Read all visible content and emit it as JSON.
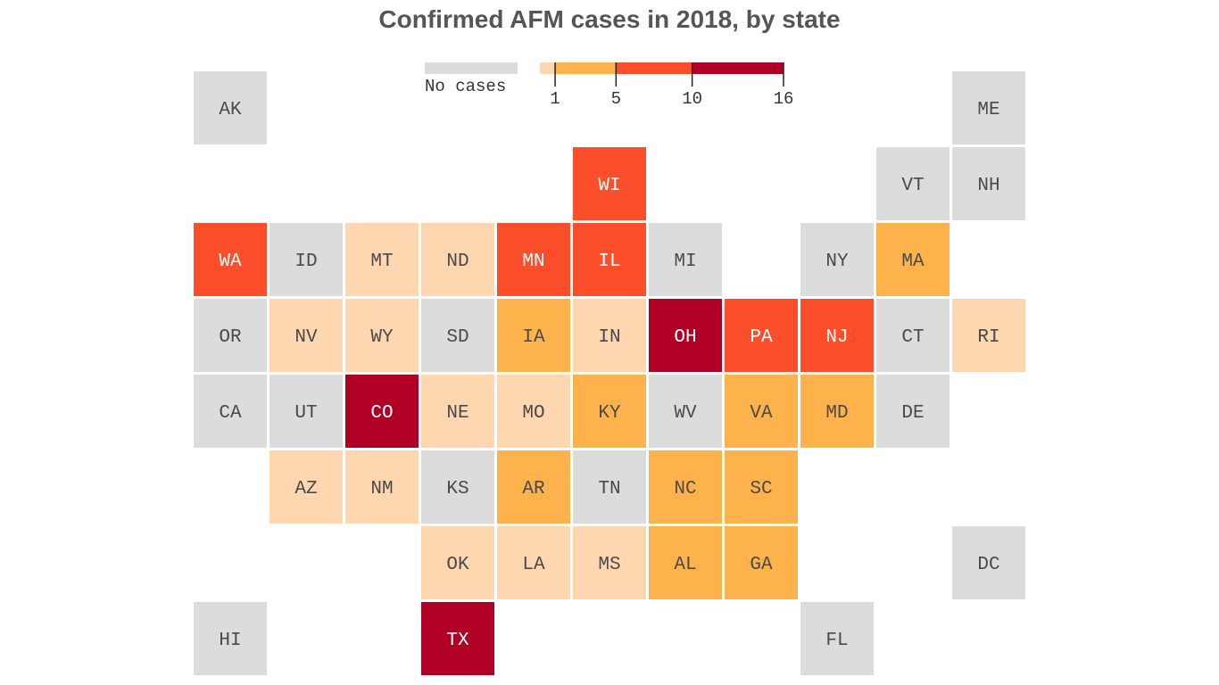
{
  "chart_data": {
    "type": "tile-map",
    "title": "Confirmed AFM cases in 2018, by state",
    "legend": {
      "no_cases_label": "No cases",
      "scale_domain": [
        0,
        16
      ],
      "ticks": [
        "1",
        "5",
        "10",
        "16"
      ],
      "bins": [
        {
          "id": "none",
          "label": "No cases",
          "color": "#dcdcdc"
        },
        {
          "id": "b1",
          "range": [
            0,
            1
          ],
          "color": "#fed6b0"
        },
        {
          "id": "b2",
          "range": [
            1,
            5
          ],
          "color": "#feb24c"
        },
        {
          "id": "b3",
          "range": [
            5,
            10
          ],
          "color": "#fc4e2a"
        },
        {
          "id": "b4",
          "range": [
            10,
            16
          ],
          "color": "#b10026"
        }
      ]
    },
    "states": [
      {
        "abbr": "AK",
        "bin": "none"
      },
      {
        "abbr": "ME",
        "bin": "none"
      },
      {
        "abbr": "WI",
        "bin": "b3"
      },
      {
        "abbr": "VT",
        "bin": "none"
      },
      {
        "abbr": "NH",
        "bin": "none"
      },
      {
        "abbr": "WA",
        "bin": "b3"
      },
      {
        "abbr": "ID",
        "bin": "none"
      },
      {
        "abbr": "MT",
        "bin": "b1"
      },
      {
        "abbr": "ND",
        "bin": "b1"
      },
      {
        "abbr": "MN",
        "bin": "b3"
      },
      {
        "abbr": "IL",
        "bin": "b3"
      },
      {
        "abbr": "MI",
        "bin": "none"
      },
      {
        "abbr": "NY",
        "bin": "none"
      },
      {
        "abbr": "MA",
        "bin": "b2"
      },
      {
        "abbr": "OR",
        "bin": "none"
      },
      {
        "abbr": "NV",
        "bin": "b1"
      },
      {
        "abbr": "WY",
        "bin": "b1"
      },
      {
        "abbr": "SD",
        "bin": "none"
      },
      {
        "abbr": "IA",
        "bin": "b2"
      },
      {
        "abbr": "IN",
        "bin": "b1"
      },
      {
        "abbr": "OH",
        "bin": "b4"
      },
      {
        "abbr": "PA",
        "bin": "b3"
      },
      {
        "abbr": "NJ",
        "bin": "b3"
      },
      {
        "abbr": "CT",
        "bin": "none"
      },
      {
        "abbr": "RI",
        "bin": "b1"
      },
      {
        "abbr": "CA",
        "bin": "none"
      },
      {
        "abbr": "UT",
        "bin": "none"
      },
      {
        "abbr": "CO",
        "bin": "b4"
      },
      {
        "abbr": "NE",
        "bin": "b1"
      },
      {
        "abbr": "MO",
        "bin": "b1"
      },
      {
        "abbr": "KY",
        "bin": "b2"
      },
      {
        "abbr": "WV",
        "bin": "none"
      },
      {
        "abbr": "VA",
        "bin": "b2"
      },
      {
        "abbr": "MD",
        "bin": "b2"
      },
      {
        "abbr": "DE",
        "bin": "none"
      },
      {
        "abbr": "AZ",
        "bin": "b1"
      },
      {
        "abbr": "NM",
        "bin": "b1"
      },
      {
        "abbr": "KS",
        "bin": "none"
      },
      {
        "abbr": "AR",
        "bin": "b2"
      },
      {
        "abbr": "TN",
        "bin": "none"
      },
      {
        "abbr": "NC",
        "bin": "b2"
      },
      {
        "abbr": "SC",
        "bin": "b2"
      },
      {
        "abbr": "OK",
        "bin": "b1"
      },
      {
        "abbr": "LA",
        "bin": "b1"
      },
      {
        "abbr": "MS",
        "bin": "b1"
      },
      {
        "abbr": "AL",
        "bin": "b2"
      },
      {
        "abbr": "GA",
        "bin": "b2"
      },
      {
        "abbr": "DC",
        "bin": "none"
      },
      {
        "abbr": "HI",
        "bin": "none"
      },
      {
        "abbr": "TX",
        "bin": "b4"
      },
      {
        "abbr": "FL",
        "bin": "none"
      }
    ]
  }
}
